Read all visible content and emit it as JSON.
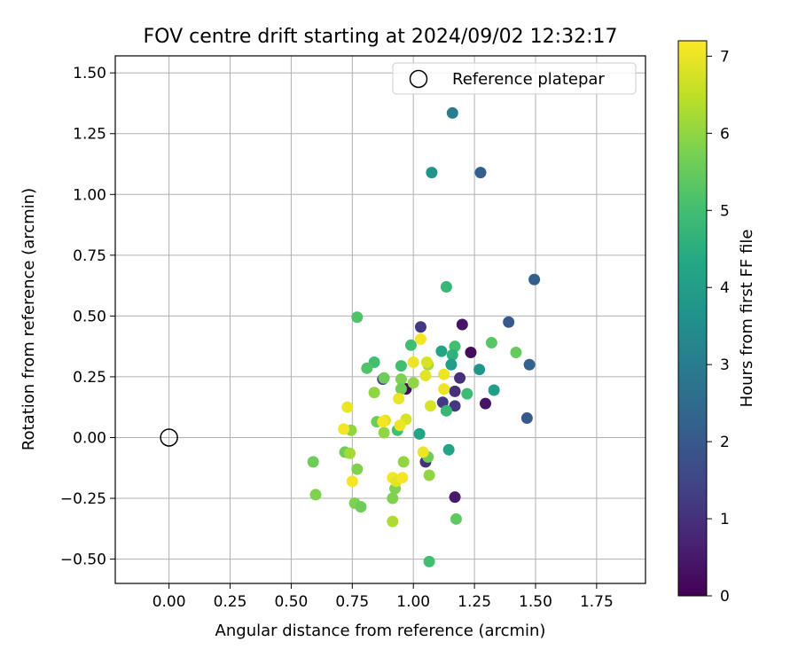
{
  "chart_data": {
    "type": "scatter",
    "title": "FOV centre drift starting at 2024/09/02 12:32:17",
    "xlabel": "Angular distance from reference (arcmin)",
    "ylabel": "Rotation from reference (arcmin)",
    "xlim": [
      -0.22,
      1.95
    ],
    "ylim": [
      -0.6,
      1.57
    ],
    "x_ticks": [
      0.0,
      0.25,
      0.5,
      0.75,
      1.0,
      1.25,
      1.5,
      1.75
    ],
    "x_tick_labels": [
      "0.00",
      "0.25",
      "0.50",
      "0.75",
      "1.00",
      "1.25",
      "1.50",
      "1.75"
    ],
    "y_ticks": [
      -0.5,
      -0.25,
      0.0,
      0.25,
      0.5,
      0.75,
      1.0,
      1.25,
      1.5
    ],
    "y_tick_labels": [
      "−0.50",
      "−0.25",
      "0.00",
      "0.25",
      "0.50",
      "0.75",
      "1.00",
      "1.25",
      "1.50"
    ],
    "grid": true,
    "legend": {
      "placement": "top-right",
      "entries": [
        "Reference platepar"
      ]
    },
    "reference_point": {
      "x": 0.0,
      "y": 0.0,
      "label": "Reference platepar"
    },
    "colorbar": {
      "label": "Hours from first FF file",
      "range": [
        0,
        7.2
      ],
      "ticks": [
        0,
        1,
        2,
        3,
        4,
        5,
        6,
        7
      ],
      "tick_labels": [
        "0",
        "1",
        "2",
        "3",
        "4",
        "5",
        "6",
        "7"
      ],
      "colormap": "viridis"
    },
    "points": [
      {
        "x": 1.16,
        "y": 1.335,
        "c": 3.0
      },
      {
        "x": 1.275,
        "y": 1.09,
        "c": 2.2
      },
      {
        "x": 1.075,
        "y": 1.09,
        "c": 3.7
      },
      {
        "x": 1.135,
        "y": 0.62,
        "c": 4.8
      },
      {
        "x": 1.495,
        "y": 0.65,
        "c": 2.2
      },
      {
        "x": 1.39,
        "y": 0.475,
        "c": 2.0
      },
      {
        "x": 1.475,
        "y": 0.3,
        "c": 2.2
      },
      {
        "x": 1.465,
        "y": 0.08,
        "c": 2.0
      },
      {
        "x": 0.77,
        "y": 0.495,
        "c": 5.2
      },
      {
        "x": 1.03,
        "y": 0.455,
        "c": 1.2
      },
      {
        "x": 1.2,
        "y": 0.465,
        "c": 0.4
      },
      {
        "x": 1.235,
        "y": 0.35,
        "c": 0.2
      },
      {
        "x": 1.19,
        "y": 0.245,
        "c": 1.0
      },
      {
        "x": 1.17,
        "y": 0.19,
        "c": 1.0
      },
      {
        "x": 1.12,
        "y": 0.145,
        "c": 1.2
      },
      {
        "x": 1.17,
        "y": 0.13,
        "c": 1.2
      },
      {
        "x": 1.295,
        "y": 0.14,
        "c": 0.4
      },
      {
        "x": 0.97,
        "y": 0.2,
        "c": 0.2
      },
      {
        "x": 1.05,
        "y": -0.1,
        "c": 1.0
      },
      {
        "x": 1.17,
        "y": -0.245,
        "c": 0.5
      },
      {
        "x": 0.875,
        "y": 0.24,
        "c": 1.5
      },
      {
        "x": 1.32,
        "y": 0.39,
        "c": 5.3
      },
      {
        "x": 1.42,
        "y": 0.35,
        "c": 5.5
      },
      {
        "x": 1.17,
        "y": 0.375,
        "c": 5.0
      },
      {
        "x": 1.115,
        "y": 0.355,
        "c": 4.2
      },
      {
        "x": 1.16,
        "y": 0.34,
        "c": 4.6
      },
      {
        "x": 1.155,
        "y": 0.3,
        "c": 4.0
      },
      {
        "x": 1.27,
        "y": 0.28,
        "c": 3.8
      },
      {
        "x": 1.33,
        "y": 0.195,
        "c": 4.0
      },
      {
        "x": 1.22,
        "y": 0.18,
        "c": 4.9
      },
      {
        "x": 1.135,
        "y": 0.11,
        "c": 4.8
      },
      {
        "x": 1.145,
        "y": -0.05,
        "c": 4.2
      },
      {
        "x": 1.025,
        "y": 0.015,
        "c": 4.2
      },
      {
        "x": 0.99,
        "y": 0.38,
        "c": 5.0
      },
      {
        "x": 0.95,
        "y": 0.295,
        "c": 5.0
      },
      {
        "x": 0.84,
        "y": 0.31,
        "c": 5.0
      },
      {
        "x": 0.81,
        "y": 0.285,
        "c": 5.2
      },
      {
        "x": 0.88,
        "y": 0.245,
        "c": 5.6
      },
      {
        "x": 0.95,
        "y": 0.24,
        "c": 5.8
      },
      {
        "x": 1.0,
        "y": 0.225,
        "c": 6.0
      },
      {
        "x": 0.95,
        "y": 0.2,
        "c": 5.6
      },
      {
        "x": 0.84,
        "y": 0.185,
        "c": 6.0
      },
      {
        "x": 0.85,
        "y": 0.065,
        "c": 5.6
      },
      {
        "x": 0.88,
        "y": 0.02,
        "c": 6.0
      },
      {
        "x": 0.935,
        "y": 0.03,
        "c": 5.0
      },
      {
        "x": 1.06,
        "y": 0.3,
        "c": 6.2
      },
      {
        "x": 1.06,
        "y": -0.08,
        "c": 5.6
      },
      {
        "x": 1.065,
        "y": -0.155,
        "c": 6.0
      },
      {
        "x": 0.745,
        "y": 0.03,
        "c": 6.0
      },
      {
        "x": 0.72,
        "y": -0.06,
        "c": 5.6
      },
      {
        "x": 0.74,
        "y": -0.065,
        "c": 6.2
      },
      {
        "x": 0.59,
        "y": -0.1,
        "c": 5.6
      },
      {
        "x": 0.6,
        "y": -0.235,
        "c": 5.8
      },
      {
        "x": 0.77,
        "y": -0.13,
        "c": 5.8
      },
      {
        "x": 0.76,
        "y": -0.27,
        "c": 5.8
      },
      {
        "x": 0.785,
        "y": -0.285,
        "c": 5.6
      },
      {
        "x": 0.96,
        "y": -0.1,
        "c": 6.0
      },
      {
        "x": 0.925,
        "y": -0.21,
        "c": 5.8
      },
      {
        "x": 0.915,
        "y": -0.25,
        "c": 5.8
      },
      {
        "x": 0.915,
        "y": -0.345,
        "c": 6.3
      },
      {
        "x": 1.065,
        "y": -0.51,
        "c": 5.0
      },
      {
        "x": 1.175,
        "y": -0.335,
        "c": 5.4
      },
      {
        "x": 1.03,
        "y": 0.405,
        "c": 7.1
      },
      {
        "x": 1.0,
        "y": 0.31,
        "c": 7.0
      },
      {
        "x": 1.055,
        "y": 0.31,
        "c": 6.8
      },
      {
        "x": 1.125,
        "y": 0.26,
        "c": 7.0
      },
      {
        "x": 1.05,
        "y": 0.255,
        "c": 6.9
      },
      {
        "x": 1.125,
        "y": 0.2,
        "c": 7.0
      },
      {
        "x": 0.94,
        "y": 0.16,
        "c": 7.0
      },
      {
        "x": 1.07,
        "y": 0.13,
        "c": 6.8
      },
      {
        "x": 0.73,
        "y": 0.125,
        "c": 7.0
      },
      {
        "x": 0.97,
        "y": 0.075,
        "c": 6.8
      },
      {
        "x": 0.885,
        "y": 0.07,
        "c": 6.8
      },
      {
        "x": 0.875,
        "y": 0.065,
        "c": 7.1
      },
      {
        "x": 0.945,
        "y": 0.05,
        "c": 7.0
      },
      {
        "x": 0.715,
        "y": 0.035,
        "c": 7.1
      },
      {
        "x": 1.04,
        "y": -0.06,
        "c": 7.0
      },
      {
        "x": 0.75,
        "y": -0.18,
        "c": 7.1
      },
      {
        "x": 0.915,
        "y": -0.165,
        "c": 7.1
      },
      {
        "x": 0.93,
        "y": -0.18,
        "c": 6.9
      },
      {
        "x": 0.955,
        "y": -0.165,
        "c": 7.1
      }
    ]
  }
}
